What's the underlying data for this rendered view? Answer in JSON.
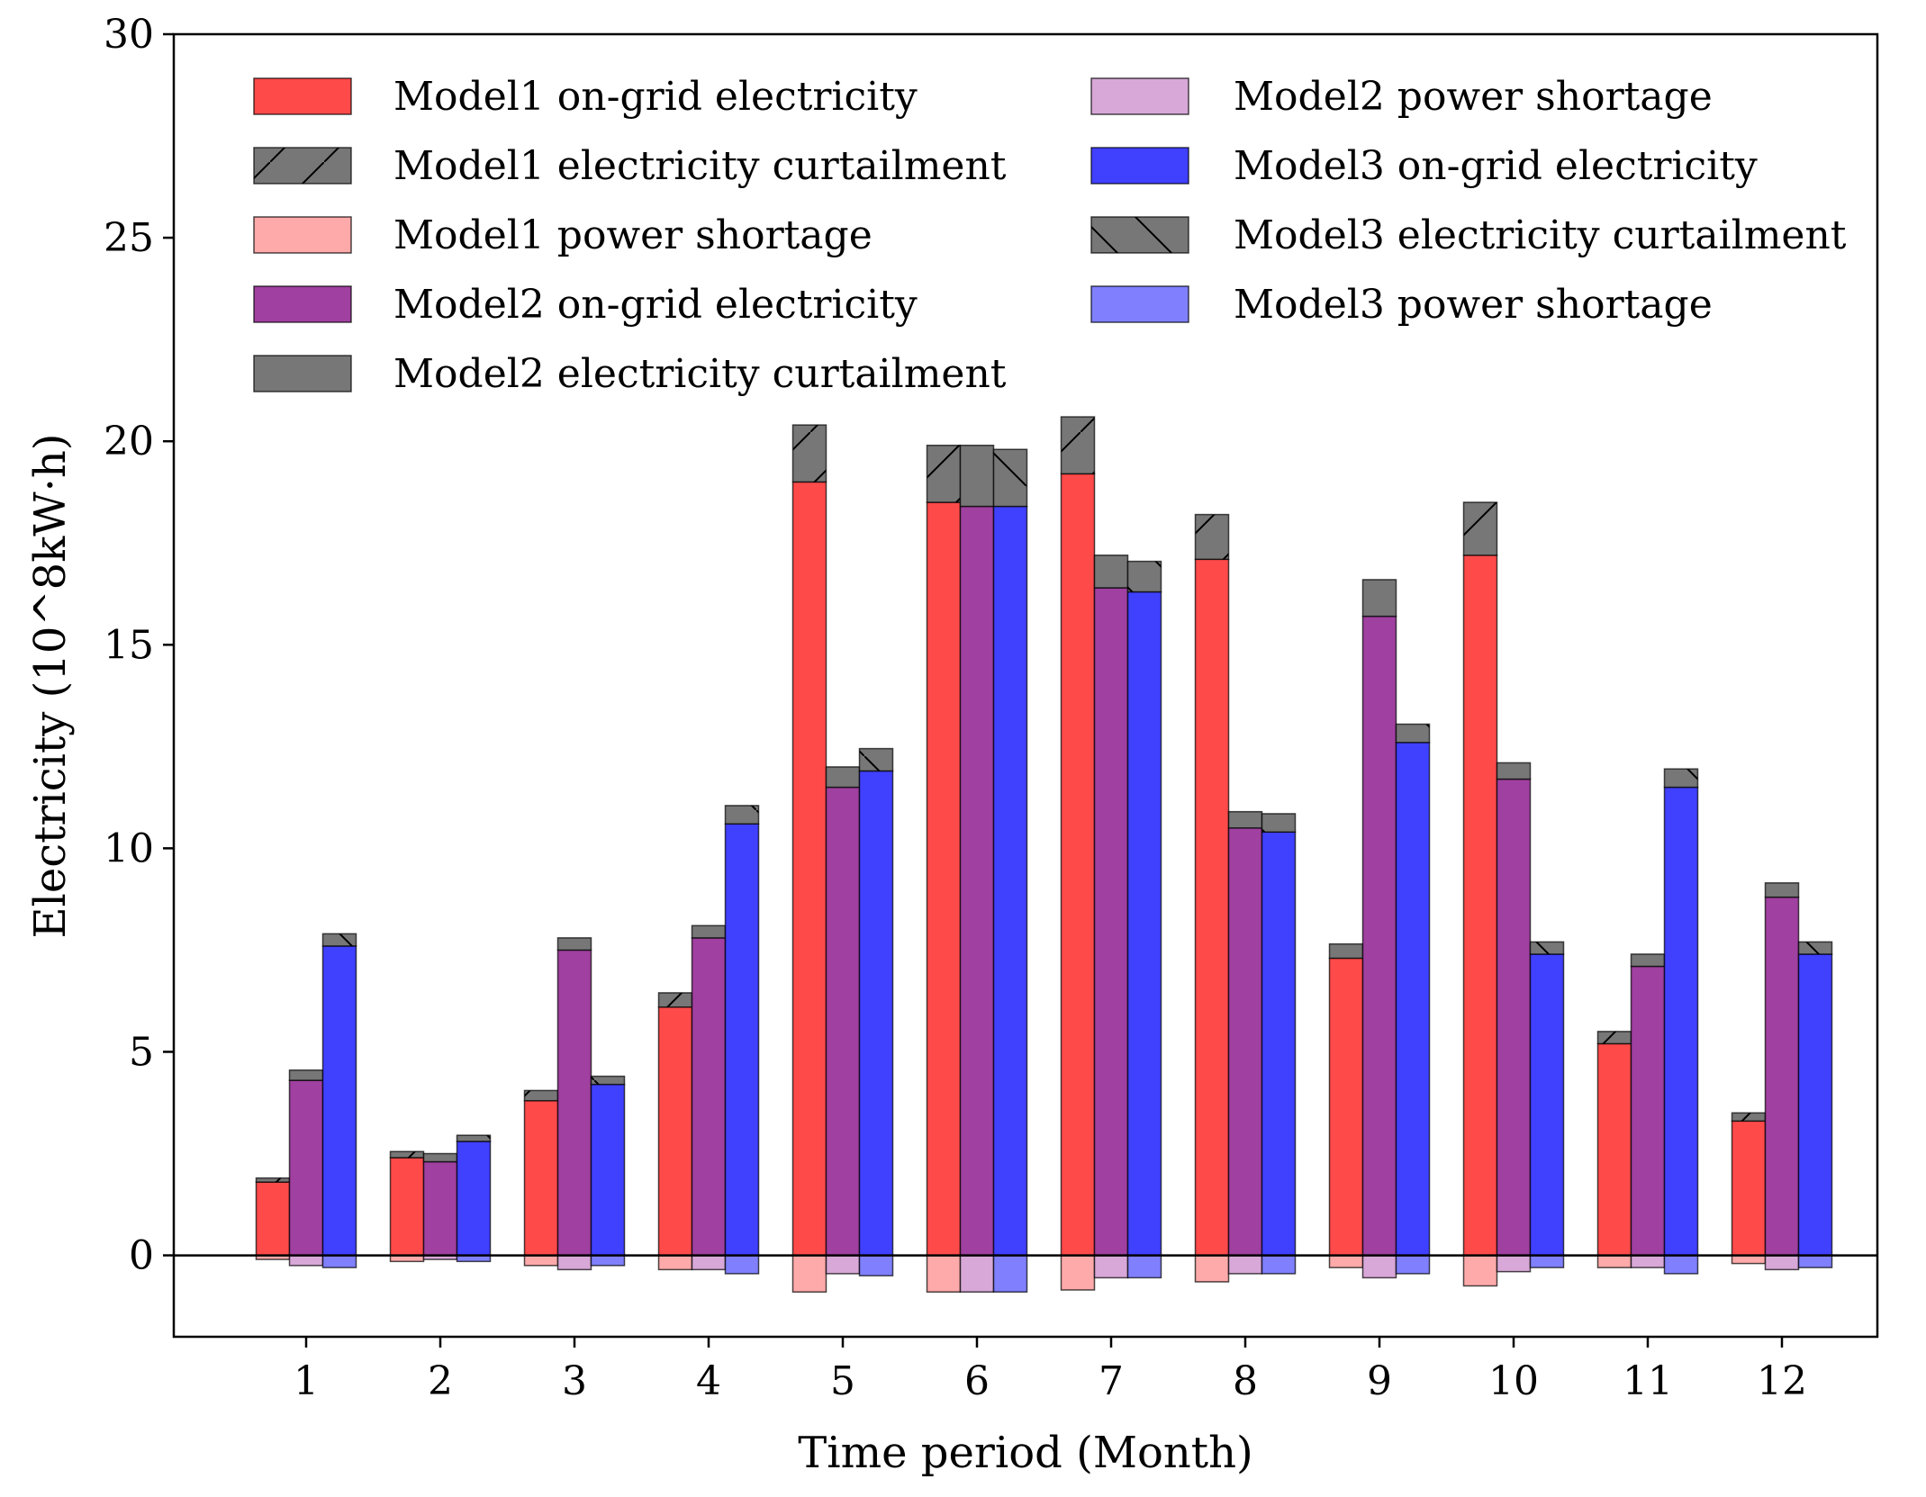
{
  "chart_data": {
    "type": "bar",
    "stacked_groups": true,
    "xlabel": "Time period (Month)",
    "ylabel": "Electricity (10^8kW·h)",
    "ylim": [
      -2,
      30
    ],
    "yticks": [
      "0",
      "5",
      "10",
      "15",
      "20",
      "25",
      "30"
    ],
    "ytick_values": [
      0,
      5,
      10,
      15,
      20,
      25,
      30
    ],
    "categories": [
      "1",
      "2",
      "3",
      "4",
      "5",
      "6",
      "7",
      "8",
      "9",
      "10",
      "11",
      "12"
    ],
    "legend_position": "top-left",
    "models": [
      {
        "name": "Model1",
        "color": "#ff4a4a",
        "shortage_color": "#ffaaaa",
        "hatch": "up",
        "on_grid": [
          1.8,
          2.4,
          3.8,
          6.1,
          19.0,
          18.5,
          19.2,
          17.1,
          7.3,
          17.2,
          5.2,
          3.3
        ],
        "curtailment": [
          0.1,
          0.15,
          0.25,
          0.35,
          1.4,
          1.4,
          1.4,
          1.1,
          0.35,
          1.3,
          0.3,
          0.2
        ],
        "shortage": [
          -0.1,
          -0.15,
          -0.25,
          -0.35,
          -0.9,
          -0.9,
          -0.85,
          -0.65,
          -0.3,
          -0.75,
          -0.3,
          -0.2
        ]
      },
      {
        "name": "Model2",
        "color": "#a040a0",
        "shortage_color": "#d8a8d8",
        "hatch": "none",
        "on_grid": [
          4.3,
          2.3,
          7.5,
          7.8,
          11.5,
          18.4,
          16.4,
          10.5,
          15.7,
          11.7,
          7.1,
          8.8
        ],
        "curtailment": [
          0.25,
          0.2,
          0.3,
          0.3,
          0.5,
          1.5,
          0.8,
          0.4,
          0.9,
          0.4,
          0.3,
          0.35
        ],
        "shortage": [
          -0.25,
          -0.1,
          -0.35,
          -0.35,
          -0.45,
          -0.9,
          -0.55,
          -0.45,
          -0.55,
          -0.4,
          -0.3,
          -0.35
        ]
      },
      {
        "name": "Model3",
        "color": "#4040ff",
        "shortage_color": "#8080ff",
        "hatch": "down",
        "on_grid": [
          7.6,
          2.8,
          4.2,
          10.6,
          11.9,
          18.4,
          16.3,
          10.4,
          12.6,
          7.4,
          11.5,
          7.4
        ],
        "curtailment": [
          0.3,
          0.15,
          0.2,
          0.45,
          0.55,
          1.4,
          0.75,
          0.45,
          0.45,
          0.3,
          0.45,
          0.3
        ],
        "shortage": [
          -0.3,
          -0.15,
          -0.25,
          -0.45,
          -0.5,
          -0.9,
          -0.55,
          -0.45,
          -0.45,
          -0.3,
          -0.45,
          -0.3
        ]
      }
    ],
    "legend": [
      {
        "label": "Model1 on-grid electricity",
        "color": "#ff4a4a",
        "hatch": "none"
      },
      {
        "label": "Model1 electricity curtailment",
        "color": "#777777",
        "hatch": "up"
      },
      {
        "label": "Model1 power shortage",
        "color": "#ffaaaa",
        "hatch": "none"
      },
      {
        "label": "Model2 on-grid electricity",
        "color": "#a040a0",
        "hatch": "none"
      },
      {
        "label": "Model2 electricity curtailment",
        "color": "#777777",
        "hatch": "none"
      },
      {
        "label": "Model2 power shortage",
        "color": "#d8a8d8",
        "hatch": "none"
      },
      {
        "label": "Model3 on-grid electricity",
        "color": "#4040ff",
        "hatch": "none"
      },
      {
        "label": "Model3 electricity curtailment",
        "color": "#777777",
        "hatch": "down"
      },
      {
        "label": "Model3 power shortage",
        "color": "#8080ff",
        "hatch": "none"
      }
    ]
  }
}
